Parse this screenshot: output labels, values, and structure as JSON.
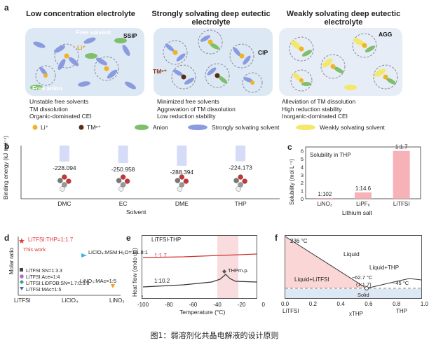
{
  "figure_caption": "图1：弱溶剂化共晶电解液的设计原则",
  "panel_a": {
    "label": "a",
    "titles": [
      "Low concentration electrolyte",
      "Strongly solvating deep eutectic electrolyte",
      "Weakly solvating deep eutectic electrolyte"
    ],
    "tags": {
      "free_solvent": "Free solvent",
      "li": "Li⁺",
      "ssip": "SSIP",
      "free_anion": "Free anion",
      "cip": "CIP",
      "tm": "TMⁿ⁺",
      "agg": "AGG"
    },
    "descriptions": [
      [
        "Unstable free solvents",
        "TM dissolution",
        "Organic-dominated CEI"
      ],
      [
        "Minimized free solvents",
        "Aggravation of TM dissolution",
        "Low reduction stability"
      ],
      [
        "Alleviation of TM dissolution",
        "High reduction stability",
        "Inorganic-dominated CEI"
      ]
    ],
    "legend": [
      "Li⁺",
      "TMⁿ⁺",
      "Anion",
      "Strongly solvating solvent",
      "Weakly solvating solvent"
    ],
    "colors": {
      "li": "#f0b323",
      "tm": "#5a2a14",
      "anion": "#7fbf6a",
      "strong": "#8b9be0",
      "weak": "#f3e86a",
      "panel": "#dde8f5"
    }
  },
  "panel_b": {
    "label": "b",
    "ylabel": "Binding energy (kJ mol⁻¹)",
    "xlabel": "Solvent",
    "chart_data": {
      "type": "bar",
      "categories": [
        "DMC",
        "EC",
        "DME",
        "THP"
      ],
      "values": [
        -228.094,
        -250.958,
        -288.394,
        -224.173
      ],
      "value_labels": [
        "-228.094",
        "-250.958",
        "-288.394",
        "-224.173"
      ]
    }
  },
  "panel_c": {
    "label": "c",
    "title": "Solubility in THP",
    "ylabel": "Solubility (mol L⁻¹)",
    "xlabel": "Lithium salt",
    "yticks": [
      "0",
      "1",
      "2",
      "3",
      "4",
      "5",
      "6"
    ],
    "chart_data": {
      "type": "bar",
      "categories": [
        "LiNO₃",
        "LiPF₆",
        "LiTFSI"
      ],
      "values": [
        0.07,
        0.8,
        6.0
      ],
      "value_labels": [
        "1:102",
        "1:14.6",
        "1:1.7"
      ],
      "ylim": [
        0,
        6.5
      ]
    }
  },
  "panel_d": {
    "label": "d",
    "ylabel": "Molar ratio",
    "xticks": [
      "LiTFSI",
      "LiClO₄",
      "LiNO₃"
    ],
    "points": [
      {
        "text": "LiTFSI:THP=1:1.7",
        "color": "#e03030"
      },
      {
        "text": "This work",
        "color": "#e03030"
      },
      {
        "text": "LiClO₄:MSM:H₂O=1:1.8:1",
        "color": "#222222"
      },
      {
        "text": "LiNO₃:MAc=1:5",
        "color": "#222222"
      },
      {
        "text": "LiTFSI:SN=1:3.3",
        "color": "#222222"
      },
      {
        "text": "LiTFSI:Ace=1:4",
        "color": "#222222"
      },
      {
        "text": "LiTFSI:LiDFOB:SN=1.7:0.3:8",
        "color": "#222222"
      },
      {
        "text": "LiTFSI:MAc=1:5",
        "color": "#222222"
      }
    ]
  },
  "panel_e": {
    "label": "e",
    "title": "LiTFSI-THP",
    "ylabel": "Heat flow (endo up)",
    "xlabel": "Temperature (°C)",
    "xticks": [
      "-100",
      "-80",
      "-60",
      "-40",
      "-20",
      "0"
    ],
    "series_labels": [
      "1:1.7",
      "1:10.2"
    ],
    "annotation": "THPm.p."
  },
  "panel_f": {
    "label": "f",
    "xticks": [
      "0.0",
      "0.2",
      "0.4",
      "0.6",
      "0.8",
      "1.0"
    ],
    "xlabel": "xTHP",
    "left_label": "LiTFSI",
    "right_label": "THP",
    "annotations": [
      "236 °C",
      "Liquid",
      "Liquid+LiTFSI",
      "Liquid+THP",
      "−62.7 °C",
      "(1:1.7)",
      "−45 °C",
      "Solid"
    ]
  }
}
